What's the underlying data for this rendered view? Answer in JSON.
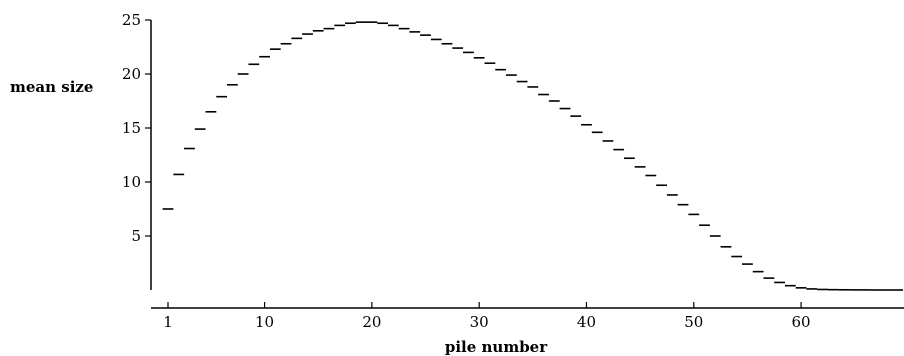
{
  "chart_data": {
    "type": "scatter",
    "title": "",
    "xlabel": "pile number",
    "ylabel": "mean size",
    "xlim": [
      0.5,
      69.5
    ],
    "ylim": [
      0,
      25
    ],
    "xticks": [
      1,
      10,
      20,
      30,
      40,
      50,
      60
    ],
    "xtick_labels": [
      "1",
      "10",
      "20",
      "30",
      "40",
      "50",
      "60"
    ],
    "yticks": [
      5,
      10,
      15,
      20,
      25
    ],
    "ytick_labels": [
      "5",
      "10",
      "15",
      "20",
      "25"
    ],
    "grid": false,
    "marker": "horizontal dash",
    "series": [
      {
        "x": [
          1,
          2,
          3,
          4,
          5,
          6,
          7,
          8,
          9,
          10,
          11,
          12,
          13,
          14,
          15,
          16,
          17,
          18,
          19,
          20,
          21,
          22,
          23,
          24,
          25,
          26,
          27,
          28,
          29,
          30,
          31,
          32,
          33,
          34,
          35,
          36,
          37,
          38,
          39,
          40,
          41,
          42,
          43,
          44,
          45,
          46,
          47,
          48,
          49,
          50,
          51,
          52,
          53,
          54,
          55,
          56,
          57,
          58,
          59,
          60,
          61,
          62,
          63,
          64,
          65,
          66,
          67,
          68,
          69
        ],
        "values": [
          7.5,
          10.7,
          13.1,
          14.9,
          16.5,
          17.9,
          19.0,
          20.0,
          20.9,
          21.6,
          22.3,
          22.8,
          23.3,
          23.7,
          24.0,
          24.2,
          24.5,
          24.7,
          24.8,
          24.8,
          24.7,
          24.5,
          24.2,
          23.9,
          23.6,
          23.2,
          22.8,
          22.4,
          22.0,
          21.5,
          21.0,
          20.4,
          19.9,
          19.3,
          18.8,
          18.1,
          17.5,
          16.8,
          16.1,
          15.3,
          14.6,
          13.8,
          13.0,
          12.2,
          11.4,
          10.6,
          9.7,
          8.8,
          7.9,
          7.0,
          6.0,
          5.0,
          4.0,
          3.1,
          2.4,
          1.7,
          1.1,
          0.7,
          0.4,
          0.2,
          0.1,
          0.05,
          0.03,
          0.02,
          0.01,
          0.01,
          0.0,
          0.0,
          0.0
        ]
      }
    ]
  }
}
